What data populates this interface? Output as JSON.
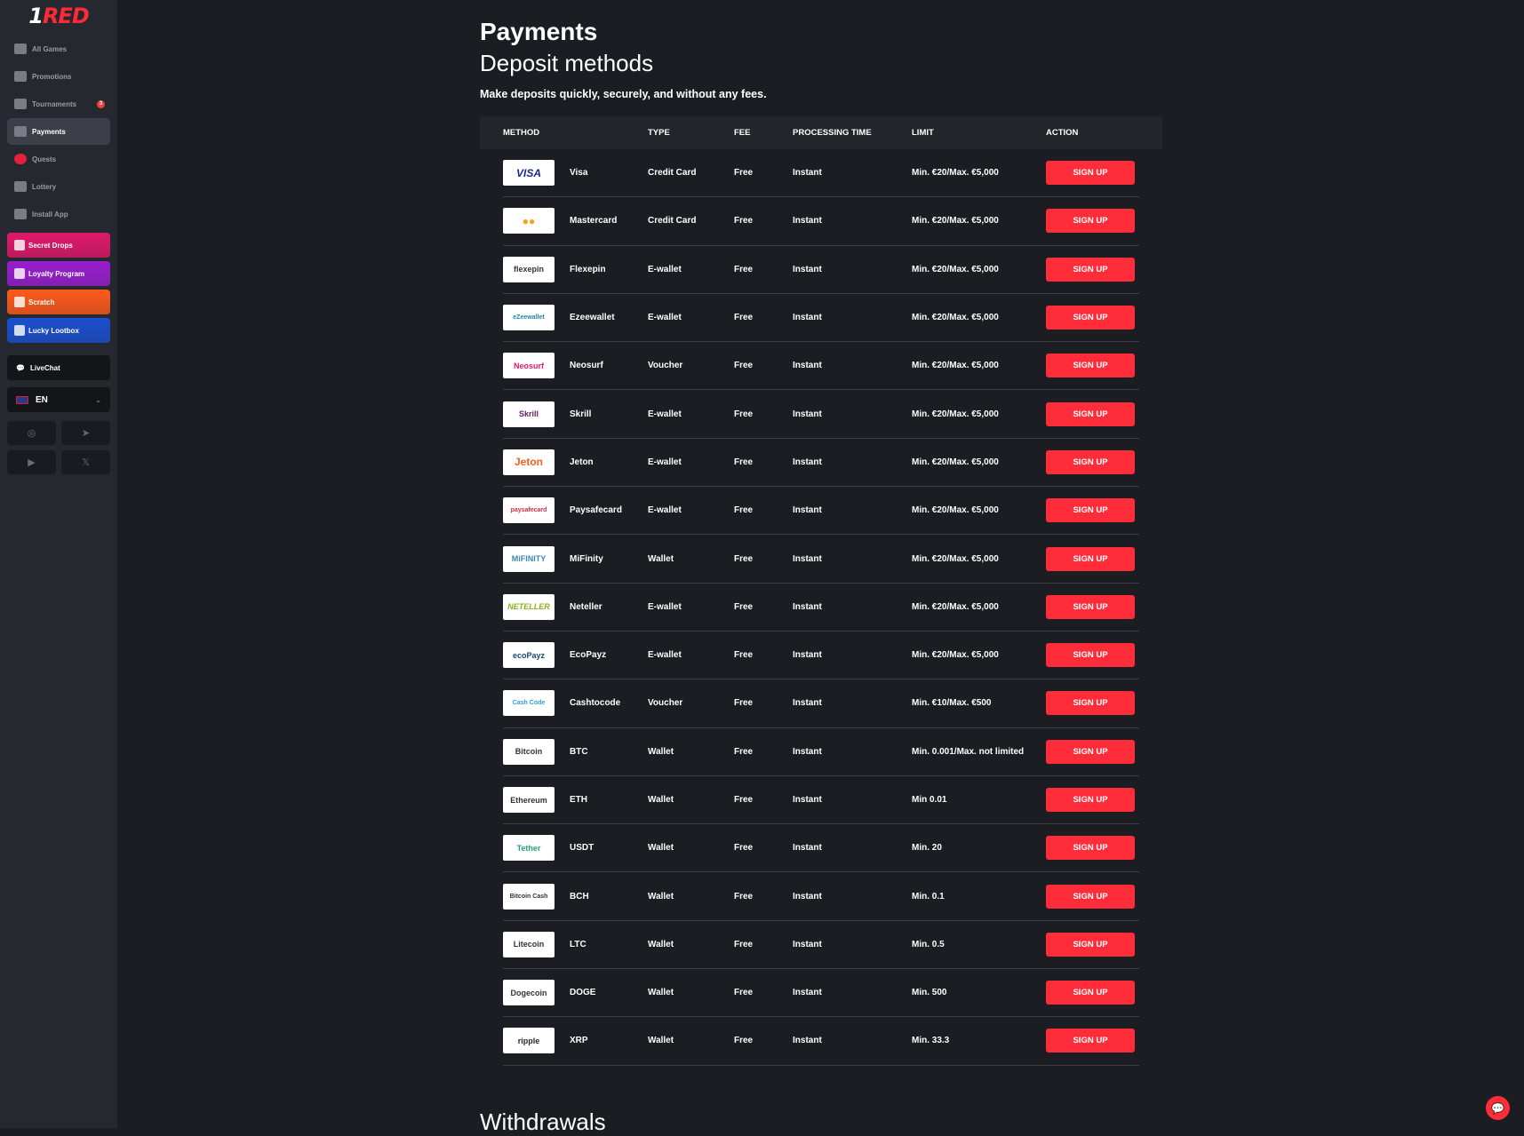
{
  "brand": {
    "logo_text": "RED"
  },
  "sidebar": {
    "items": [
      {
        "label": "All Games",
        "icon": "slots-icon"
      },
      {
        "label": "Promotions",
        "icon": "gift-icon"
      },
      {
        "label": "Tournaments",
        "icon": "trophy-icon",
        "badge": "3"
      },
      {
        "label": "Payments",
        "icon": "coins-icon",
        "active": true
      },
      {
        "label": "Quests",
        "icon": "quest-badge-icon"
      },
      {
        "label": "Lottery",
        "icon": "ticket-icon"
      },
      {
        "label": "Install App",
        "icon": "download-icon"
      }
    ],
    "promos": [
      {
        "label": "Secret Drops",
        "color": "#e0186a"
      },
      {
        "label": "Loyalty Program",
        "color": "#9a1ed0"
      },
      {
        "label": "Scratch",
        "color": "#ff5a1a"
      },
      {
        "label": "Lucky Lootbox",
        "color": "#1a4fd0"
      }
    ],
    "livechat": "LiveChat",
    "language": "EN"
  },
  "main": {
    "title": "Payments",
    "subtitle": "Deposit methods",
    "description": "Make deposits quickly, securely, and without any fees.",
    "columns": [
      "METHOD",
      "TYPE",
      "FEE",
      "PROCESSING TIME",
      "LIMIT",
      "ACTION"
    ],
    "rows": [
      {
        "logo": "VISA",
        "logo_color": "#1a2a8a",
        "method": "Visa",
        "type": "Credit Card",
        "fee": "Free",
        "time": "Instant",
        "limit": "Min. €20/Max. €5,000",
        "action": "SIGN UP"
      },
      {
        "logo": "●●",
        "logo_color": "#f79e1b",
        "method": "Mastercard",
        "type": "Credit Card",
        "fee": "Free",
        "time": "Instant",
        "limit": "Min. €20/Max. €5,000",
        "action": "SIGN UP"
      },
      {
        "logo": "flexepin",
        "logo_color": "#333333",
        "method": "Flexepin",
        "type": "E-wallet",
        "fee": "Free",
        "time": "Instant",
        "limit": "Min. €20/Max. €5,000",
        "action": "SIGN UP"
      },
      {
        "logo": "eZeewallet",
        "logo_color": "#1a8aa0",
        "method": "Ezeewallet",
        "type": "E-wallet",
        "fee": "Free",
        "time": "Instant",
        "limit": "Min. €20/Max. €5,000",
        "action": "SIGN UP"
      },
      {
        "logo": "Neosurf",
        "logo_color": "#e0187a",
        "method": "Neosurf",
        "type": "Voucher",
        "fee": "Free",
        "time": "Instant",
        "limit": "Min. €20/Max. €5,000",
        "action": "SIGN UP"
      },
      {
        "logo": "Skrill",
        "logo_color": "#6a1a5a",
        "method": "Skrill",
        "type": "E-wallet",
        "fee": "Free",
        "time": "Instant",
        "limit": "Min. €20/Max. €5,000",
        "action": "SIGN UP"
      },
      {
        "logo": "Jeton",
        "logo_color": "#f06020",
        "method": "Jeton",
        "type": "E-wallet",
        "fee": "Free",
        "time": "Instant",
        "limit": "Min. €20/Max. €5,000",
        "action": "SIGN UP"
      },
      {
        "logo": "paysafecard",
        "logo_color": "#d03040",
        "method": "Paysafecard",
        "type": "E-wallet",
        "fee": "Free",
        "time": "Instant",
        "limit": "Min. €20/Max. €5,000",
        "action": "SIGN UP"
      },
      {
        "logo": "MiFINITY",
        "logo_color": "#3a8ab0",
        "method": "MiFinity",
        "type": "Wallet",
        "fee": "Free",
        "time": "Instant",
        "limit": "Min. €20/Max. €5,000",
        "action": "SIGN UP"
      },
      {
        "logo": "NETELLER",
        "logo_color": "#8ab020",
        "method": "Neteller",
        "type": "E-wallet",
        "fee": "Free",
        "time": "Instant",
        "limit": "Min. €20/Max. €5,000",
        "action": "SIGN UP"
      },
      {
        "logo": "ecoPayz",
        "logo_color": "#1a4a6a",
        "method": "EcoPayz",
        "type": "E-wallet",
        "fee": "Free",
        "time": "Instant",
        "limit": "Min. €20/Max. €5,000",
        "action": "SIGN UP"
      },
      {
        "logo": "Cash Code",
        "logo_color": "#2aa0e0",
        "method": "Cashtocode",
        "type": "Voucher",
        "fee": "Free",
        "time": "Instant",
        "limit": "Min. €10/Max. €500",
        "action": "SIGN UP"
      },
      {
        "logo": "Bitcoin",
        "logo_color": "#333333",
        "method": "BTC",
        "type": "Wallet",
        "fee": "Free",
        "time": "Instant",
        "limit": "Min. 0.001/Max. not limited",
        "action": "SIGN UP"
      },
      {
        "logo": "Ethereum",
        "logo_color": "#333333",
        "method": "ETH",
        "type": "Wallet",
        "fee": "Free",
        "time": "Instant",
        "limit": "Min 0.01",
        "action": "SIGN UP"
      },
      {
        "logo": "Tether",
        "logo_color": "#26a17b",
        "method": "USDT",
        "type": "Wallet",
        "fee": "Free",
        "time": "Instant",
        "limit": "Min. 20",
        "action": "SIGN UP"
      },
      {
        "logo": "Bitcoin Cash",
        "logo_color": "#333333",
        "method": "BCH",
        "type": "Wallet",
        "fee": "Free",
        "time": "Instant",
        "limit": "Min. 0.1",
        "action": "SIGN UP"
      },
      {
        "logo": "Litecoin",
        "logo_color": "#333333",
        "method": "LTC",
        "type": "Wallet",
        "fee": "Free",
        "time": "Instant",
        "limit": "Min. 0.5",
        "action": "SIGN UP"
      },
      {
        "logo": "Dogecoin",
        "logo_color": "#333333",
        "method": "DOGE",
        "type": "Wallet",
        "fee": "Free",
        "time": "Instant",
        "limit": "Min. 500",
        "action": "SIGN UP"
      },
      {
        "logo": "ripple",
        "logo_color": "#23292f",
        "method": "XRP",
        "type": "Wallet",
        "fee": "Free",
        "time": "Instant",
        "limit": "Min. 33.3",
        "action": "SIGN UP"
      }
    ],
    "next_section": "Withdrawals"
  },
  "accent": "#ff2d3a"
}
